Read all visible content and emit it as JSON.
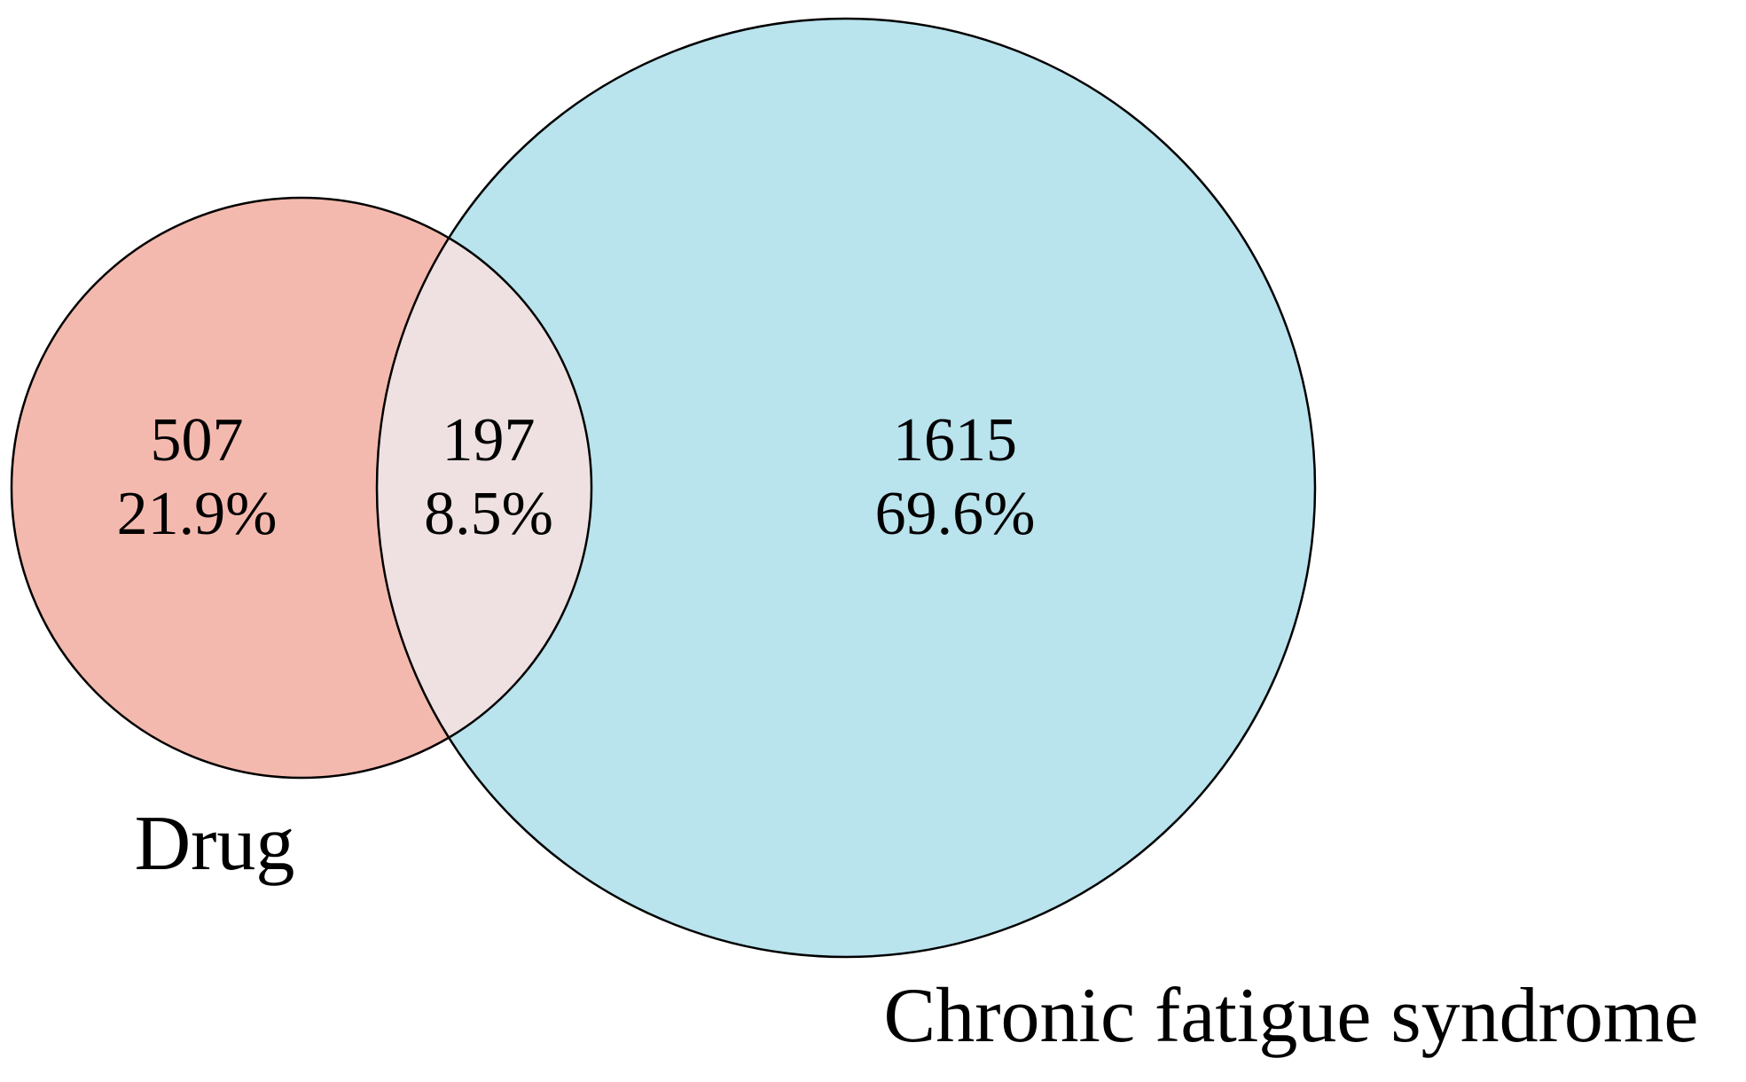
{
  "chart_data": {
    "type": "venn",
    "sets": [
      {
        "name": "Drug",
        "color": "#f4b9ae"
      },
      {
        "name": "Chronic fatigue syndrome",
        "color": "#b9e3ed"
      }
    ],
    "overlap_color": "#efe1e1",
    "values": [
      507,
      197,
      1615
    ],
    "percentages": [
      21.9,
      8.5,
      69.6
    ],
    "percentage_labels": [
      "21.9%",
      "8.5%",
      "69.6%"
    ]
  }
}
